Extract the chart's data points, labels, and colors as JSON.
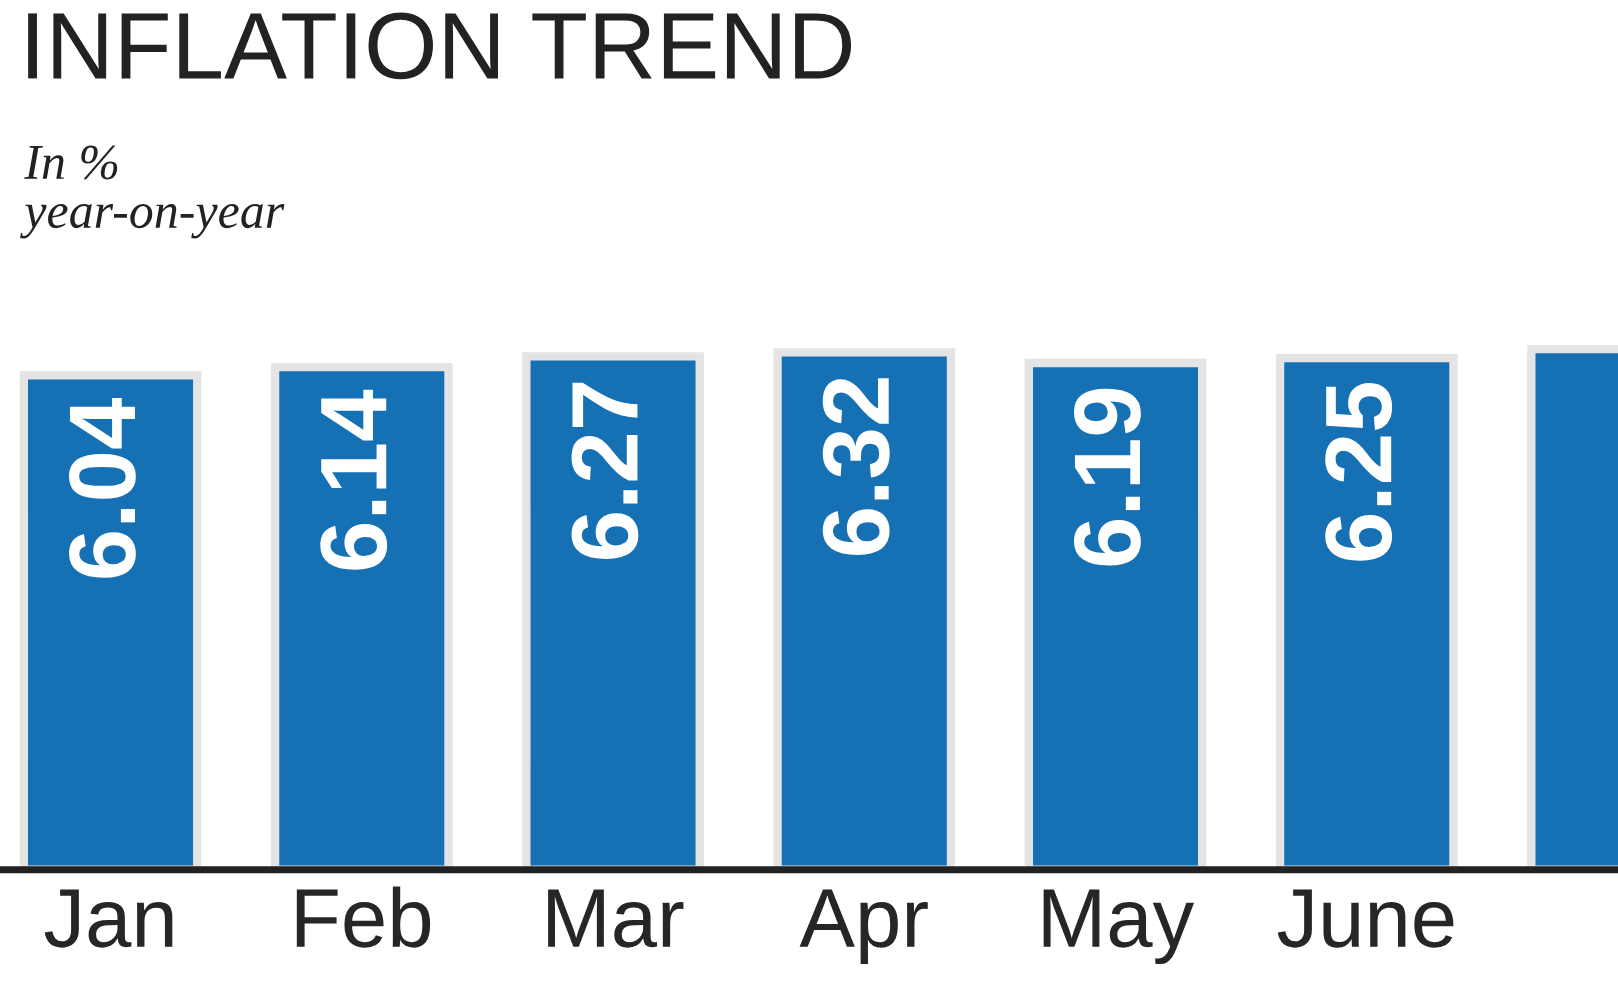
{
  "chart_data": {
    "type": "bar",
    "title": "INFLATION TREND",
    "subtitle": "In %\nyear-on-year",
    "categories": [
      "Jan",
      "Feb",
      "Mar",
      "Apr",
      "May",
      "June",
      null
    ],
    "values": [
      6.04,
      6.14,
      6.27,
      6.32,
      6.19,
      6.25,
      6.36
    ],
    "value_labels": [
      "6.04",
      "6.14",
      "6.27",
      "6.32",
      "6.19",
      "6.25",
      null
    ],
    "color": "#1670b4",
    "tick_labels": "x",
    "grid": false,
    "legend": false
  }
}
